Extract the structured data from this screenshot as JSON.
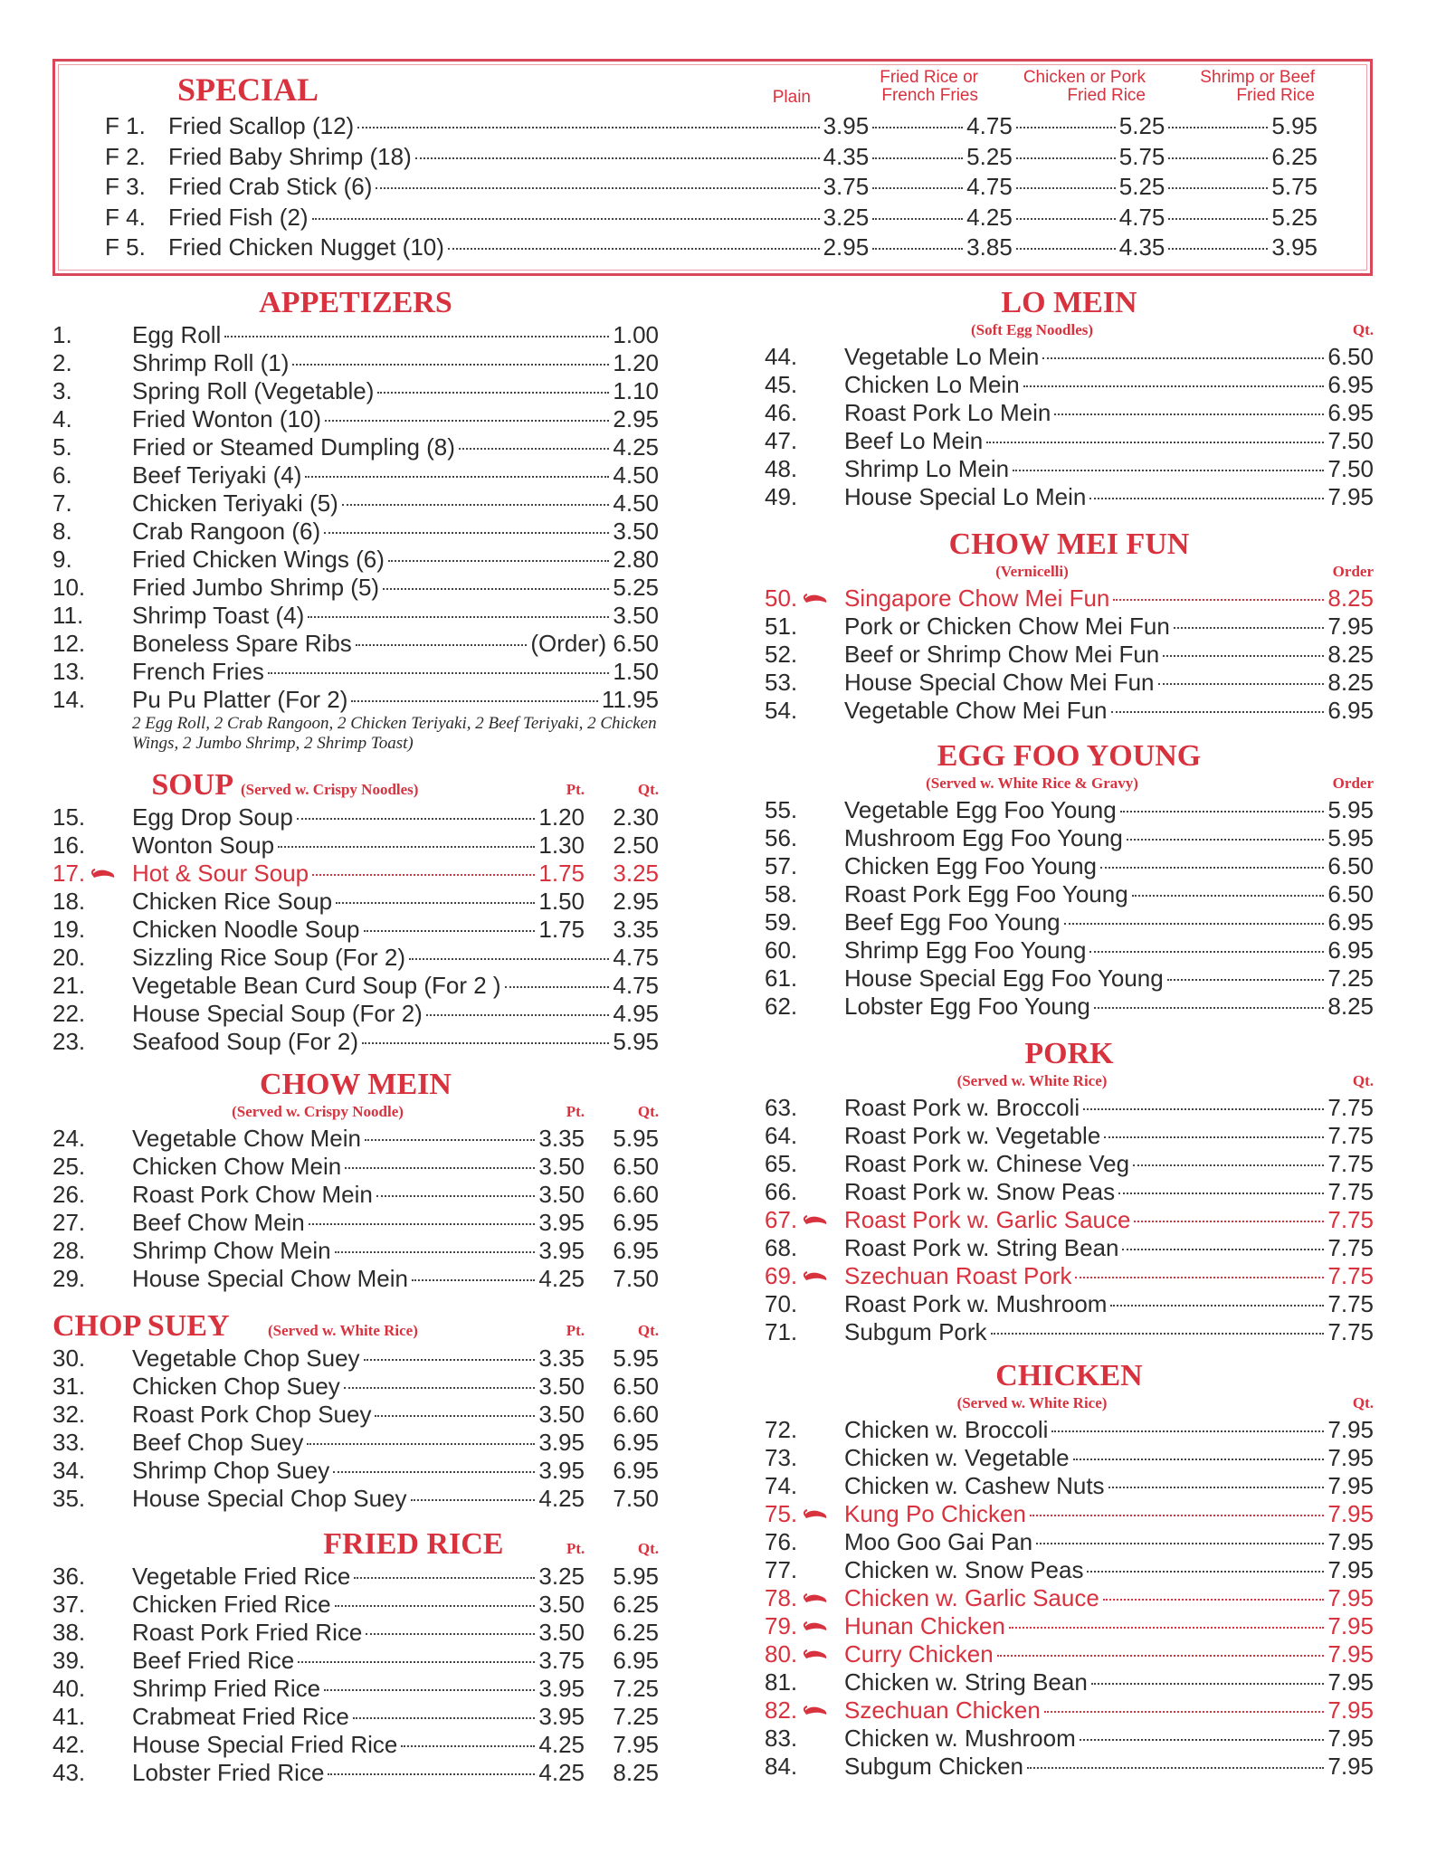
{
  "special": {
    "title": "SPECIAL",
    "columns": [
      "Plain",
      "Fried Rice or French Fries",
      "Chicken or Pork Fried Rice",
      "Shrimp or Beef Fried Rice"
    ],
    "items": [
      {
        "code": "F 1.",
        "name": "Fried Scallop (12)",
        "prices": [
          "3.95",
          "4.75",
          "5.25",
          "5.95"
        ]
      },
      {
        "code": "F 2.",
        "name": "Fried Baby Shrimp (18)",
        "prices": [
          "4.35",
          "5.25",
          "5.75",
          "6.25"
        ]
      },
      {
        "code": "F 3.",
        "name": "Fried Crab Stick (6)",
        "prices": [
          "3.75",
          "4.75",
          "5.25",
          "5.75"
        ]
      },
      {
        "code": "F 4.",
        "name": "Fried Fish (2)",
        "prices": [
          "3.25",
          "4.25",
          "4.75",
          "5.25"
        ]
      },
      {
        "code": "F 5.",
        "name": "Fried Chicken Nugget (10)",
        "prices": [
          "2.95",
          "3.85",
          "4.35",
          "3.95"
        ]
      }
    ]
  },
  "sections": [
    {
      "id": "appetizers",
      "title": "APPETIZERS",
      "items": [
        {
          "num": "1.",
          "name": "Egg Roll",
          "prices": [
            "1.00"
          ]
        },
        {
          "num": "2.",
          "name": "Shrimp Roll (1)",
          "prices": [
            "1.20"
          ]
        },
        {
          "num": "3.",
          "name": "Spring Roll (Vegetable)",
          "prices": [
            "1.10"
          ]
        },
        {
          "num": "4.",
          "name": "Fried Wonton (10)",
          "prices": [
            "2.95"
          ]
        },
        {
          "num": "5.",
          "name": "Fried or Steamed Dumpling (8)",
          "prices": [
            "4.25"
          ]
        },
        {
          "num": "6.",
          "name": "Beef Teriyaki (4)",
          "prices": [
            "4.50"
          ]
        },
        {
          "num": "7.",
          "name": "Chicken Teriyaki (5)",
          "prices": [
            "4.50"
          ]
        },
        {
          "num": "8.",
          "name": "Crab Rangoon (6)",
          "prices": [
            "3.50"
          ]
        },
        {
          "num": "9.",
          "name": "Fried Chicken Wings (6)",
          "prices": [
            "2.80"
          ]
        },
        {
          "num": "10.",
          "name": "Fried Jumbo Shrimp (5)",
          "prices": [
            "5.25"
          ]
        },
        {
          "num": "11.",
          "name": "Shrimp Toast (4)",
          "prices": [
            "3.50"
          ]
        },
        {
          "num": "12.",
          "name": "Boneless Spare Ribs",
          "prices": [
            "(Order) 6.50"
          ]
        },
        {
          "num": "13.",
          "name": "French Fries",
          "prices": [
            "1.50"
          ]
        },
        {
          "num": "14.",
          "name": "Pu Pu Platter (For 2)",
          "prices": [
            "11.95"
          ],
          "note": "2 Egg Roll, 2 Crab Rangoon, 2 Chicken Teriyaki, 2 Beef Teriyaki, 2 Chicken Wings, 2 Jumbo Shrimp, 2 Shrimp Toast)"
        }
      ]
    },
    {
      "id": "soup",
      "title": "SOUP",
      "subtitle": "(Served w. Crispy Noodles)",
      "headers": [
        "Pt.",
        "Qt."
      ],
      "items": [
        {
          "num": "15.",
          "name": "Egg Drop Soup",
          "prices": [
            "1.20",
            "2.30"
          ]
        },
        {
          "num": "16.",
          "name": "Wonton Soup",
          "prices": [
            "1.30",
            "2.50"
          ]
        },
        {
          "num": "17.",
          "name": "Hot & Sour Soup",
          "prices": [
            "1.75",
            "3.25"
          ],
          "hot": true
        },
        {
          "num": "18.",
          "name": "Chicken Rice Soup",
          "prices": [
            "1.50",
            "2.95"
          ]
        },
        {
          "num": "19.",
          "name": "Chicken Noodle Soup",
          "prices": [
            "1.75",
            "3.35"
          ]
        },
        {
          "num": "20.",
          "name": "Sizzling Rice Soup (For 2)",
          "prices": [
            "4.75"
          ]
        },
        {
          "num": "21.",
          "name": "Vegetable Bean Curd Soup (For 2 )",
          "prices": [
            "4.75"
          ]
        },
        {
          "num": "22.",
          "name": "House Special Soup (For 2)",
          "prices": [
            "4.95"
          ]
        },
        {
          "num": "23.",
          "name": "Seafood Soup (For 2)",
          "prices": [
            "5.95"
          ]
        }
      ]
    },
    {
      "id": "chow-mein",
      "title": "CHOW MEIN",
      "subtitle": "(Served w. Crispy Noodle)",
      "headers": [
        "Pt.",
        "Qt."
      ],
      "items": [
        {
          "num": "24.",
          "name": "Vegetable Chow Mein",
          "prices": [
            "3.35",
            "5.95"
          ]
        },
        {
          "num": "25.",
          "name": "Chicken Chow Mein",
          "prices": [
            "3.50",
            "6.50"
          ]
        },
        {
          "num": "26.",
          "name": "Roast Pork Chow Mein",
          "prices": [
            "3.50",
            "6.60"
          ]
        },
        {
          "num": "27.",
          "name": "Beef Chow Mein",
          "prices": [
            "3.95",
            "6.95"
          ]
        },
        {
          "num": "28.",
          "name": "Shrimp Chow Mein",
          "prices": [
            "3.95",
            "6.95"
          ]
        },
        {
          "num": "29.",
          "name": "House Special Chow Mein",
          "prices": [
            "4.25",
            "7.50"
          ]
        }
      ]
    },
    {
      "id": "chop-suey",
      "title": "CHOP SUEY",
      "subtitle": "(Served w. White Rice)",
      "headers": [
        "Pt.",
        "Qt."
      ],
      "items": [
        {
          "num": "30.",
          "name": "Vegetable Chop Suey",
          "prices": [
            "3.35",
            "5.95"
          ]
        },
        {
          "num": "31.",
          "name": "Chicken Chop Suey",
          "prices": [
            "3.50",
            "6.50"
          ]
        },
        {
          "num": "32.",
          "name": "Roast Pork Chop Suey",
          "prices": [
            "3.50",
            "6.60"
          ]
        },
        {
          "num": "33.",
          "name": "Beef Chop Suey",
          "prices": [
            "3.95",
            "6.95"
          ]
        },
        {
          "num": "34.",
          "name": "Shrimp Chop Suey",
          "prices": [
            "3.95",
            "6.95"
          ]
        },
        {
          "num": "35.",
          "name": "House Special Chop Suey",
          "prices": [
            "4.25",
            "7.50"
          ]
        }
      ]
    },
    {
      "id": "fried-rice",
      "title": "FRIED RICE",
      "headers": [
        "Pt.",
        "Qt."
      ],
      "items": [
        {
          "num": "36.",
          "name": "Vegetable Fried Rice",
          "prices": [
            "3.25",
            "5.95"
          ]
        },
        {
          "num": "37.",
          "name": "Chicken Fried Rice",
          "prices": [
            "3.50",
            "6.25"
          ]
        },
        {
          "num": "38.",
          "name": "Roast Pork Fried Rice",
          "prices": [
            "3.50",
            "6.25"
          ]
        },
        {
          "num": "39.",
          "name": "Beef Fried Rice",
          "prices": [
            "3.75",
            "6.95"
          ]
        },
        {
          "num": "40.",
          "name": "Shrimp Fried Rice",
          "prices": [
            "3.95",
            "7.25"
          ]
        },
        {
          "num": "41.",
          "name": "Crabmeat Fried Rice",
          "prices": [
            "3.95",
            "7.25"
          ]
        },
        {
          "num": "42.",
          "name": "House Special Fried Rice",
          "prices": [
            "4.25",
            "7.95"
          ]
        },
        {
          "num": "43.",
          "name": "Lobster Fried Rice",
          "prices": [
            "4.25",
            "8.25"
          ]
        }
      ]
    },
    {
      "id": "lo-mein",
      "title": "LO MEIN",
      "subtitle": "(Soft Egg Noodles)",
      "headers": [
        "Qt."
      ],
      "items": [
        {
          "num": "44.",
          "name": "Vegetable Lo Mein",
          "prices": [
            "6.50"
          ]
        },
        {
          "num": "45.",
          "name": "Chicken Lo Mein",
          "prices": [
            "6.95"
          ]
        },
        {
          "num": "46.",
          "name": "Roast Pork Lo Mein",
          "prices": [
            "6.95"
          ]
        },
        {
          "num": "47.",
          "name": "Beef Lo Mein",
          "prices": [
            "7.50"
          ]
        },
        {
          "num": "48.",
          "name": "Shrimp Lo Mein",
          "prices": [
            "7.50"
          ]
        },
        {
          "num": "49.",
          "name": "House Special Lo Mein",
          "prices": [
            "7.95"
          ]
        }
      ]
    },
    {
      "id": "chow-mei-fun",
      "title": "CHOW MEI FUN",
      "subtitle": "(Vernicelli)",
      "headers": [
        "Order"
      ],
      "items": [
        {
          "num": "50.",
          "name": "Singapore Chow Mei Fun",
          "prices": [
            "8.25"
          ],
          "hot": true
        },
        {
          "num": "51.",
          "name": "Pork or Chicken Chow Mei Fun",
          "prices": [
            "7.95"
          ]
        },
        {
          "num": "52.",
          "name": "Beef or Shrimp Chow Mei Fun",
          "prices": [
            "8.25"
          ]
        },
        {
          "num": "53.",
          "name": "House Special Chow Mei Fun",
          "prices": [
            "8.25"
          ]
        },
        {
          "num": "54.",
          "name": "Vegetable Chow Mei Fun",
          "prices": [
            "6.95"
          ]
        }
      ]
    },
    {
      "id": "egg-foo-young",
      "title": "EGG FOO YOUNG",
      "subtitle": "(Served w. White Rice & Gravy)",
      "headers": [
        "Order"
      ],
      "items": [
        {
          "num": "55.",
          "name": "Vegetable Egg Foo Young",
          "prices": [
            "5.95"
          ]
        },
        {
          "num": "56.",
          "name": "Mushroom Egg Foo Young",
          "prices": [
            "5.95"
          ]
        },
        {
          "num": "57.",
          "name": "Chicken Egg Foo Young",
          "prices": [
            "6.50"
          ]
        },
        {
          "num": "58.",
          "name": "Roast Pork Egg Foo Young",
          "prices": [
            "6.50"
          ]
        },
        {
          "num": "59.",
          "name": "Beef Egg Foo Young",
          "prices": [
            "6.95"
          ]
        },
        {
          "num": "60.",
          "name": "Shrimp Egg Foo Young",
          "prices": [
            "6.95"
          ]
        },
        {
          "num": "61.",
          "name": "House Special Egg Foo Young",
          "prices": [
            "7.25"
          ]
        },
        {
          "num": "62.",
          "name": "Lobster Egg Foo Young",
          "prices": [
            "8.25"
          ]
        }
      ]
    },
    {
      "id": "pork",
      "title": "PORK",
      "subtitle": "(Served w. White Rice)",
      "headers": [
        "Qt."
      ],
      "items": [
        {
          "num": "63.",
          "name": "Roast Pork w. Broccoli",
          "prices": [
            "7.75"
          ]
        },
        {
          "num": "64.",
          "name": "Roast Pork w. Vegetable",
          "prices": [
            "7.75"
          ]
        },
        {
          "num": "65.",
          "name": "Roast Pork w. Chinese Veg",
          "prices": [
            "7.75"
          ]
        },
        {
          "num": "66.",
          "name": "Roast Pork w. Snow Peas",
          "prices": [
            "7.75"
          ]
        },
        {
          "num": "67.",
          "name": "Roast Pork w. Garlic Sauce",
          "prices": [
            "7.75"
          ],
          "hot": true
        },
        {
          "num": "68.",
          "name": "Roast Pork w. String Bean",
          "prices": [
            "7.75"
          ]
        },
        {
          "num": "69.",
          "name": "Szechuan Roast Pork",
          "prices": [
            "7.75"
          ],
          "hot": true
        },
        {
          "num": "70.",
          "name": "Roast Pork w. Mushroom",
          "prices": [
            "7.75"
          ]
        },
        {
          "num": "71.",
          "name": "Subgum Pork",
          "prices": [
            "7.75"
          ]
        }
      ]
    },
    {
      "id": "chicken",
      "title": "CHICKEN",
      "subtitle": "(Served w. White Rice)",
      "headers": [
        "Qt."
      ],
      "items": [
        {
          "num": "72.",
          "name": "Chicken w. Broccoli",
          "prices": [
            "7.95"
          ]
        },
        {
          "num": "73.",
          "name": "Chicken w. Vegetable",
          "prices": [
            "7.95"
          ]
        },
        {
          "num": "74.",
          "name": "Chicken w. Cashew Nuts",
          "prices": [
            "7.95"
          ]
        },
        {
          "num": "75.",
          "name": "Kung Po Chicken",
          "prices": [
            "7.95"
          ],
          "hot": true
        },
        {
          "num": "76.",
          "name": "Moo Goo Gai Pan",
          "prices": [
            "7.95"
          ]
        },
        {
          "num": "77.",
          "name": "Chicken w. Snow Peas",
          "prices": [
            "7.95"
          ]
        },
        {
          "num": "78.",
          "name": "Chicken w. Garlic Sauce",
          "prices": [
            "7.95"
          ],
          "hot": true
        },
        {
          "num": "79.",
          "name": "Hunan Chicken",
          "prices": [
            "7.95"
          ],
          "hot": true
        },
        {
          "num": "80.",
          "name": "Curry Chicken",
          "prices": [
            "7.95"
          ],
          "hot": true
        },
        {
          "num": "81.",
          "name": "Chicken w. String Bean",
          "prices": [
            "7.95"
          ]
        },
        {
          "num": "82.",
          "name": "Szechuan Chicken",
          "prices": [
            "7.95"
          ],
          "hot": true
        },
        {
          "num": "83.",
          "name": "Chicken w. Mushroom",
          "prices": [
            "7.95"
          ]
        },
        {
          "num": "84.",
          "name": "Subgum Chicken",
          "prices": [
            "7.95"
          ]
        }
      ]
    }
  ],
  "colors": {
    "accent": "#d8323e",
    "text": "#2b2b2b"
  },
  "icons": {
    "spicy": "hot-pepper-icon"
  }
}
